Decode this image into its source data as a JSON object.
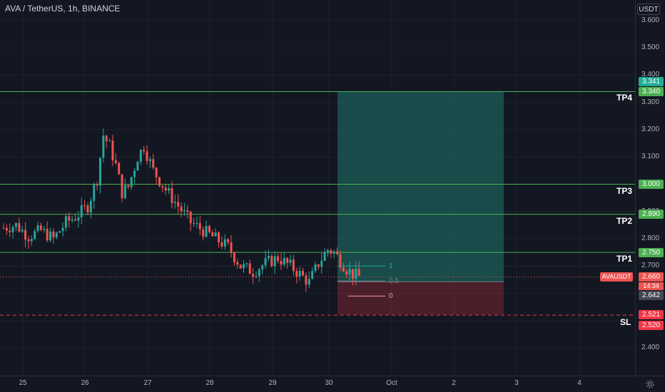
{
  "header": {
    "symbol_title": "AVA / TetherUS, 1h, BINANCE",
    "currency": "USDT"
  },
  "price_axis": {
    "ticks": [
      "3.600",
      "3.500",
      "3.400",
      "3.300",
      "3.200",
      "3.100",
      "2.900",
      "2.800",
      "2.700",
      "2.400"
    ]
  },
  "time_axis": {
    "ticks": [
      "25",
      "26",
      "27",
      "28",
      "29",
      "30",
      "Oct",
      "2",
      "3",
      "4"
    ]
  },
  "levels": {
    "tp4": {
      "label": "TP4",
      "price": "3.340",
      "price_value": 3.34
    },
    "tp3": {
      "label": "TP3",
      "price": "3.000",
      "price_value": 3.0
    },
    "tp2": {
      "label": "TP2",
      "price": "2.890",
      "price_value": 2.89
    },
    "tp1": {
      "label": "TP1",
      "price": "2.750",
      "price_value": 2.75
    },
    "sl": {
      "label": "SL",
      "price": "2.520",
      "price_value": 2.52
    }
  },
  "position_tool": {
    "target_price": "3.341",
    "stop_price": "2.521",
    "entry_price": "2.642",
    "target_color": "#22ab94",
    "stop_color": "#f23645"
  },
  "fib": {
    "levels": [
      "1",
      "0.5",
      "0"
    ]
  },
  "last_price": {
    "symbol": "AVAUSDT",
    "price": "2.660",
    "countdown": "14:34"
  },
  "colors": {
    "background": "#131722",
    "up": "#26a69a",
    "down": "#ef5350",
    "level_line": "#4caf50",
    "stop_line": "#f23645"
  },
  "chart_data": {
    "type": "candlestick",
    "title": "AVA / TetherUS, 1h, BINANCE",
    "xlabel": "",
    "ylabel": "",
    "ylim": [
      2.3,
      3.66
    ],
    "x_ticks": [
      "25",
      "26",
      "27",
      "28",
      "29",
      "30",
      "Oct",
      "2",
      "3",
      "4"
    ],
    "trend_close": [
      [
        0,
        2.84
      ],
      [
        4,
        2.85
      ],
      [
        8,
        2.81
      ],
      [
        12,
        2.83
      ],
      [
        16,
        2.8
      ],
      [
        20,
        2.86
      ],
      [
        23,
        2.88
      ],
      [
        27,
        2.92
      ],
      [
        30,
        3.02
      ],
      [
        32,
        3.18
      ],
      [
        34,
        3.14
      ],
      [
        36,
        3.07
      ],
      [
        38,
        2.97
      ],
      [
        40,
        2.99
      ],
      [
        43,
        3.1
      ],
      [
        45,
        3.14
      ],
      [
        48,
        3.05
      ],
      [
        52,
        2.98
      ],
      [
        56,
        2.92
      ],
      [
        60,
        2.86
      ],
      [
        64,
        2.83
      ],
      [
        68,
        2.8
      ],
      [
        72,
        2.77
      ],
      [
        76,
        2.7
      ],
      [
        80,
        2.68
      ],
      [
        84,
        2.71
      ],
      [
        88,
        2.73
      ],
      [
        92,
        2.7
      ],
      [
        95,
        2.67
      ],
      [
        98,
        2.64
      ],
      [
        101,
        2.71
      ],
      [
        104,
        2.76
      ],
      [
        106,
        2.75
      ],
      [
        108,
        2.72
      ],
      [
        110,
        2.69
      ],
      [
        112,
        2.67
      ],
      [
        114,
        2.66
      ]
    ]
  }
}
